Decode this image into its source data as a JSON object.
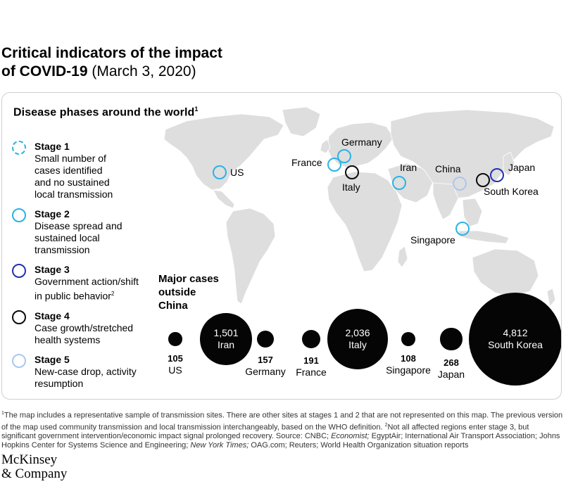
{
  "title": {
    "line1": "Critical indicators of the impact",
    "line2_bold": "of COVID-19",
    "line2_date": "(March 3, 2020)"
  },
  "panel_title": "Disease phases around the world",
  "panel_title_note": "1",
  "colors": {
    "stage1": "#2bb3e6",
    "stage2": "#2bb3e6",
    "stage3": "#2231b5",
    "stage4": "#0b0b0b",
    "stage5": "#a9c7ef",
    "land": "#dedede",
    "bubble": "#050505"
  },
  "legend": [
    {
      "name": "Stage 1",
      "desc": "Small number of\ncases identified\nand no sustained\nlocal transmission",
      "style": "dashed",
      "color": "#2bb3e6"
    },
    {
      "name": "Stage 2",
      "desc": "Disease spread and\nsustained local\ntransmission",
      "style": "solid",
      "color": "#2bb3e6"
    },
    {
      "name": "Stage 3",
      "desc": "Government action/shift\nin public behavior",
      "desc_note": "2",
      "style": "solid",
      "color": "#2231b5"
    },
    {
      "name": "Stage 4",
      "desc": "Case growth/stretched\nhealth systems",
      "style": "solid",
      "color": "#0b0b0b"
    },
    {
      "name": "Stage 5",
      "desc": "New-case drop, activity\nresumption",
      "style": "solid",
      "color": "#a9c7ef"
    }
  ],
  "map_sites": [
    {
      "label": "US",
      "stage": 2
    },
    {
      "label": "France",
      "stage": 2
    },
    {
      "label": "Germany",
      "stage": 2
    },
    {
      "label": "Italy",
      "stage": 4
    },
    {
      "label": "Iran",
      "stage": 2
    },
    {
      "label": "China",
      "stage": 5
    },
    {
      "label": "Japan",
      "stage": 3
    },
    {
      "label": "South Korea",
      "stage": 4
    },
    {
      "label": "Singapore",
      "stage": 2
    }
  ],
  "major_cases_title": "Major cases\noutside\nChina",
  "chart_data": {
    "type": "bubble",
    "title": "Major cases outside China",
    "categories": [
      "US",
      "Iran",
      "Germany",
      "France",
      "Italy",
      "Singapore",
      "Japan",
      "South Korea"
    ],
    "values": [
      105,
      1501,
      157,
      191,
      2036,
      108,
      268,
      4812
    ],
    "value_labels": [
      "105",
      "1,501",
      "157",
      "191",
      "2,036",
      "108",
      "268",
      "4,812"
    ]
  },
  "footnote": {
    "part1": "The map includes a representative sample of transmission sites. There are other sites at stages 1 and 2 that are not represented on this map. The previous version of the map used community transmission and local transmission interchangeably, based on the WHO definition.",
    "part2": "Not all affected regions enter stage 3, but significant government intervention/economic impact signal prolonged recovery. Source: CNBC;",
    "economist": "Economist;",
    "part3": "EgyptAir; International Air Transport Association; Johns Hopkins Center for Systems Science and Engineering;",
    "nyt": "New York Times;",
    "part4": "OAG.com; Reuters; World Health Organization situation reports",
    "note1": "1",
    "note2": "2"
  },
  "logo": {
    "line1": "McKinsey",
    "line2": "& Company"
  }
}
